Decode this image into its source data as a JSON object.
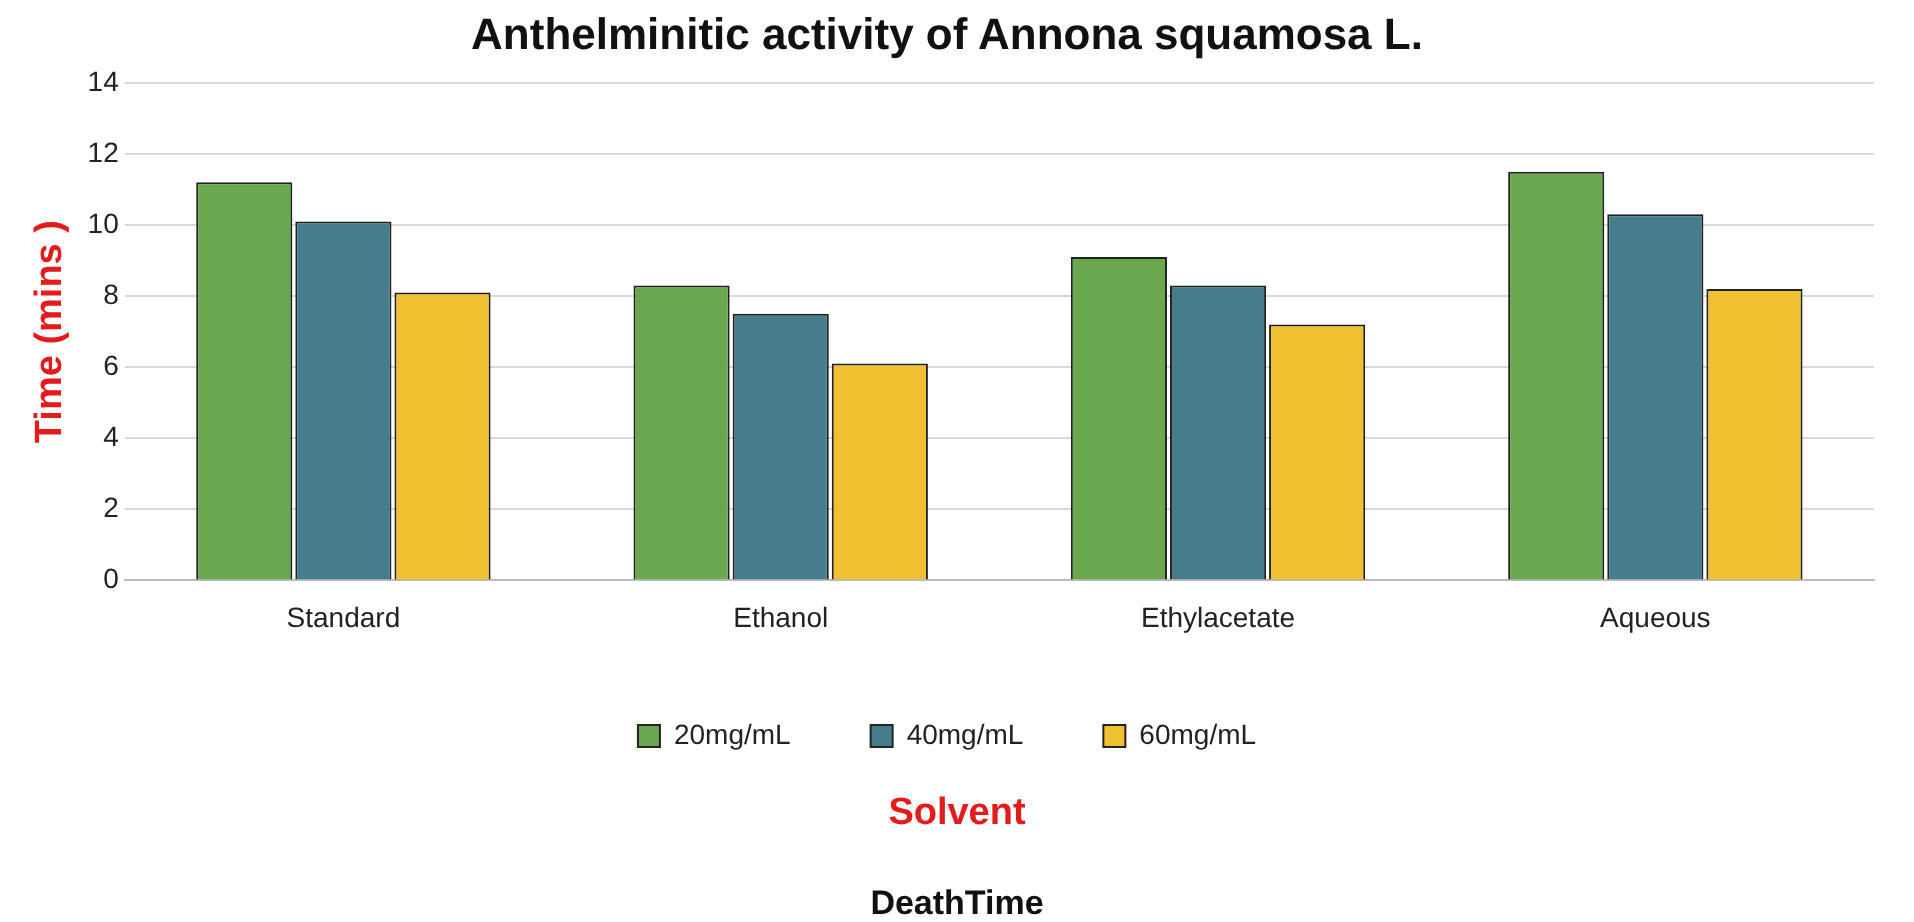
{
  "chart_data": {
    "type": "bar",
    "title": "Anthelminitic activity of Annona squamosa L.",
    "xlabel": "Solvent",
    "ylabel": "Time (mins )",
    "annotations": [
      "DeathTime"
    ],
    "categories": [
      "Standard",
      "Ethanol",
      "Ethylacetate",
      "Aqueous"
    ],
    "series": [
      {
        "name": "20mg/mL",
        "color": "#6aa84f",
        "values": [
          11.2,
          8.3,
          9.1,
          11.5
        ]
      },
      {
        "name": "40mg/mL",
        "color": "#457d8c",
        "values": [
          10.1,
          7.5,
          8.3,
          10.3
        ]
      },
      {
        "name": "60mg/mL",
        "color": "#f0c030",
        "values": [
          8.1,
          6.1,
          7.2,
          8.2
        ]
      }
    ],
    "ylim": [
      0,
      14
    ],
    "yticks": [
      0,
      2,
      4,
      6,
      8,
      10,
      12,
      14
    ],
    "grid": "y",
    "legend": "bottom"
  }
}
